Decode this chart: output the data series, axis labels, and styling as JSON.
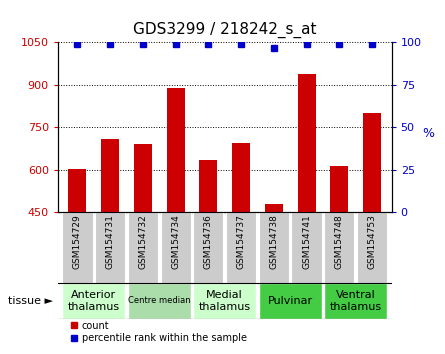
{
  "title": "GDS3299 / 218242_s_at",
  "samples": [
    "GSM154729",
    "GSM154731",
    "GSM154732",
    "GSM154734",
    "GSM154736",
    "GSM154737",
    "GSM154738",
    "GSM154741",
    "GSM154748",
    "GSM154753"
  ],
  "counts": [
    605,
    710,
    690,
    890,
    635,
    695,
    480,
    940,
    615,
    800
  ],
  "percentile_ranks": [
    99,
    99,
    99,
    99,
    99,
    99,
    97,
    99,
    99,
    99
  ],
  "ylim_left": [
    450,
    1050
  ],
  "ylim_right": [
    0,
    100
  ],
  "yticks_left": [
    450,
    600,
    750,
    900,
    1050
  ],
  "yticks_right": [
    0,
    25,
    50,
    75,
    100
  ],
  "bar_color": "#cc0000",
  "dot_color": "#0000cc",
  "tissue_groups": [
    {
      "label": "Anterior\nthalamus",
      "samples": [
        "GSM154729",
        "GSM154731"
      ],
      "color": "#ccffcc",
      "font_size": 8
    },
    {
      "label": "Centre median",
      "samples": [
        "GSM154732",
        "GSM154734"
      ],
      "color": "#aaddaa",
      "font_size": 6
    },
    {
      "label": "Medial\nthalamus",
      "samples": [
        "GSM154736",
        "GSM154737"
      ],
      "color": "#ccffcc",
      "font_size": 8
    },
    {
      "label": "Pulvinar",
      "samples": [
        "GSM154738",
        "GSM154741"
      ],
      "color": "#44cc44",
      "font_size": 8
    },
    {
      "label": "Ventral\nthalamus",
      "samples": [
        "GSM154748",
        "GSM154753"
      ],
      "color": "#44cc44",
      "font_size": 8
    }
  ],
  "title_color": "#000000",
  "left_tick_color": "#cc0000",
  "right_tick_color": "#0000cc",
  "sample_box_color": "#cccccc",
  "legend_bar_label": "count",
  "legend_dot_label": "percentile rank within the sample",
  "tissue_label": "tissue"
}
